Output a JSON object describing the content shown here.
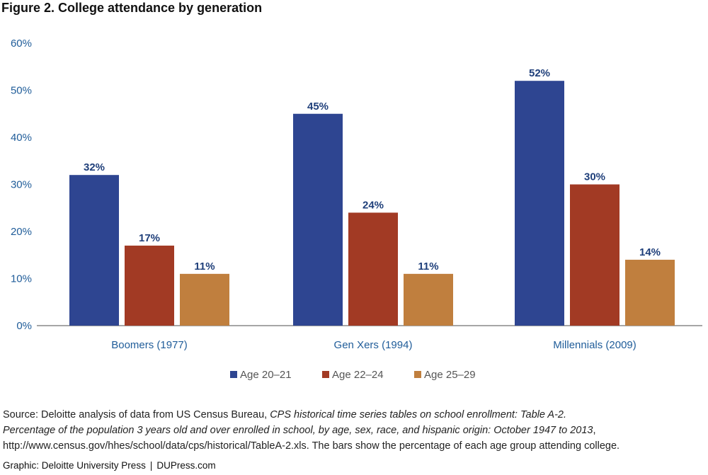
{
  "title": "Figure 2. College attendance by generation",
  "chart_data": {
    "type": "bar",
    "categories": [
      "Boomers (1977)",
      "Gen Xers (1994)",
      "Millennials (2009)"
    ],
    "series": [
      {
        "name": "Age 20–21",
        "color": "#2e4591",
        "values": [
          32,
          45,
          52
        ],
        "labels": [
          "32%",
          "45%",
          "52%"
        ]
      },
      {
        "name": "Age 22–24",
        "color": "#a23a24",
        "values": [
          17,
          24,
          30
        ],
        "labels": [
          "17%",
          "24%",
          "30%"
        ]
      },
      {
        "name": "Age 25–29",
        "color": "#c07f3e",
        "values": [
          11,
          11,
          14
        ],
        "labels": [
          "11%",
          "11%",
          "14%"
        ]
      }
    ],
    "ylim": [
      0,
      60
    ],
    "yticks": [
      0,
      10,
      20,
      30,
      40,
      50,
      60
    ],
    "ytick_labels": [
      "0%",
      "10%",
      "20%",
      "30%",
      "40%",
      "50%",
      "60%"
    ],
    "grid": false,
    "legend_position": "bottom-center"
  },
  "source": {
    "line1_prefix": "Source: Deloitte analysis of data from US Census Bureau, ",
    "line1_italic": "CPS historical time series tables on school enrollment: Table A-2.",
    "line2_italic": "Percentage of the population 3 years old and over enrolled in school, by age, sex, race, and hispanic origin: October 1947 to 2013",
    "line2_suffix": ",",
    "line3": "http://www.census.gov/hhes/school/data/cps/historical/TableA-2.xls. The bars show the percentage of each age group attending college."
  },
  "footer": {
    "left": "Graphic: Deloitte University Press",
    "separator": "|",
    "right": "DUPress.com"
  }
}
